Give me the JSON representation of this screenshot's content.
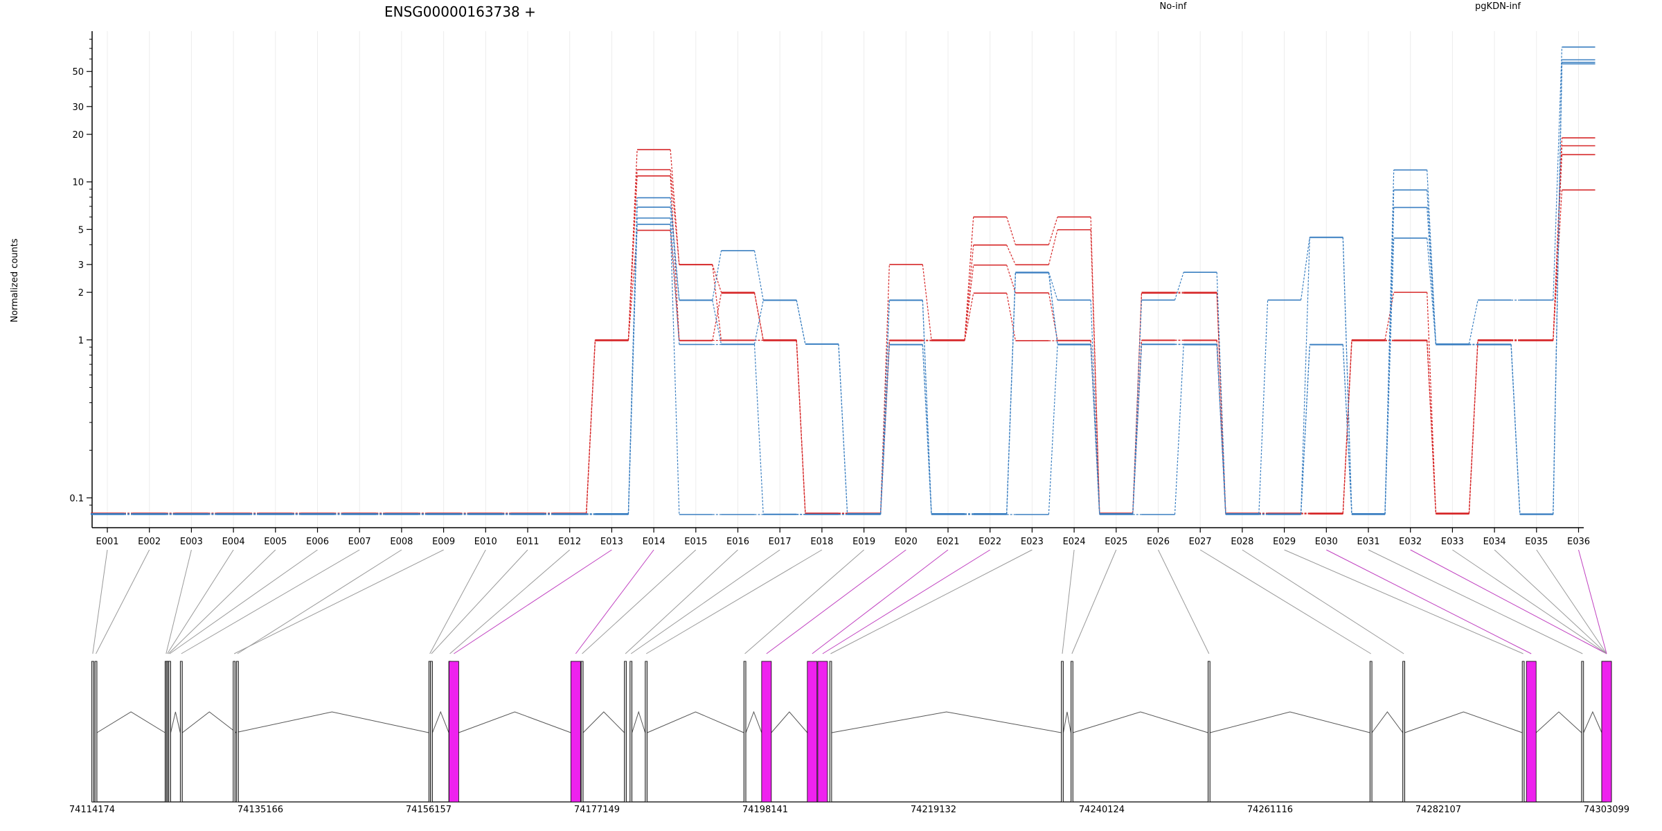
{
  "chart_data": {
    "type": "line",
    "title": "ENSG00000163738 +",
    "ylabel": "Normalized counts",
    "yscale": "log",
    "yticks": [
      0.1,
      1,
      2,
      3,
      5,
      10,
      20,
      30,
      50
    ],
    "ytick_labels": [
      "0.1",
      "1",
      "2",
      "3",
      "5",
      "10",
      "20",
      "30",
      "50"
    ],
    "ylim": [
      0.08,
      90
    ],
    "grid": true,
    "legend_position": "top",
    "exon_labels": [
      "E001",
      "E002",
      "E003",
      "E004",
      "E005",
      "E006",
      "E007",
      "E008",
      "E009",
      "E010",
      "E011",
      "E012",
      "E013",
      "E014",
      "E015",
      "E016",
      "E017",
      "E018",
      "E019",
      "E020",
      "E021",
      "E022",
      "E023",
      "E024",
      "E025",
      "E026",
      "E027",
      "E028",
      "E029",
      "E030",
      "E031",
      "E032",
      "E033",
      "E034",
      "E035",
      "E036"
    ],
    "series": [
      {
        "name": "No-inf",
        "color": "#d62728",
        "samples": [
          {
            "values": [
              0.08,
              0.08,
              0.08,
              0.08,
              0.08,
              0.08,
              0.08,
              0.08,
              0.08,
              0.08,
              0.08,
              0.08,
              1,
              16,
              3,
              2,
              1,
              0.08,
              0.08,
              3,
              1,
              6,
              4,
              6,
              0.08,
              2,
              2,
              0.08,
              0.08,
              0.08,
              1,
              2,
              0.08,
              1,
              1,
              19
            ]
          },
          {
            "values": [
              0.08,
              0.08,
              0.08,
              0.08,
              0.08,
              0.08,
              0.08,
              0.08,
              0.08,
              0.08,
              0.08,
              0.08,
              1,
              12,
              3,
              1,
              1,
              0.08,
              0.08,
              1,
              1,
              4,
              3,
              5,
              0.08,
              1,
              1,
              0.08,
              0.08,
              0.08,
              1,
              1,
              0.08,
              1,
              1,
              17
            ]
          },
          {
            "values": [
              0.08,
              0.08,
              0.08,
              0.08,
              0.08,
              0.08,
              0.08,
              0.08,
              0.08,
              0.08,
              0.08,
              0.08,
              1,
              11,
              1,
              1,
              1,
              0.08,
              0.08,
              1,
              1,
              3,
              2,
              1,
              0.08,
              1,
              1,
              0.08,
              0.08,
              0.08,
              1,
              1,
              0.08,
              1,
              1,
              15
            ]
          },
          {
            "values": [
              0.08,
              0.08,
              0.08,
              0.08,
              0.08,
              0.08,
              0.08,
              0.08,
              0.08,
              0.08,
              0.08,
              0.08,
              1,
              5,
              1,
              2,
              1,
              0.08,
              0.08,
              1,
              1,
              2,
              1,
              1,
              0.08,
              2,
              2,
              0.08,
              0.08,
              0.08,
              1,
              1,
              0.08,
              1,
              1,
              9
            ]
          }
        ]
      },
      {
        "name": "pgKDN-inf",
        "color": "#3a7fc1",
        "samples": [
          {
            "values": [
              0.08,
              0.08,
              0.08,
              0.08,
              0.08,
              0.08,
              0.08,
              0.08,
              0.08,
              0.08,
              0.08,
              0.08,
              0.08,
              8,
              1.8,
              3.7,
              1.8,
              0.95,
              0.08,
              1.8,
              0.08,
              0.08,
              2.7,
              1.8,
              0.08,
              1.8,
              2.7,
              0.08,
              1.8,
              4.5,
              0.08,
              12,
              0.95,
              1.8,
              1.8,
              72
            ]
          },
          {
            "values": [
              0.08,
              0.08,
              0.08,
              0.08,
              0.08,
              0.08,
              0.08,
              0.08,
              0.08,
              0.08,
              0.08,
              0.08,
              0.08,
              7,
              1.8,
              0.95,
              1.8,
              0.95,
              0.08,
              1.8,
              0.08,
              0.08,
              2.7,
              0.95,
              0.08,
              0.95,
              0.95,
              0.08,
              0.08,
              4.5,
              0.08,
              9,
              0.95,
              0.95,
              0.08,
              60
            ]
          },
          {
            "values": [
              0.08,
              0.08,
              0.08,
              0.08,
              0.08,
              0.08,
              0.08,
              0.08,
              0.08,
              0.08,
              0.08,
              0.08,
              0.08,
              6,
              0.95,
              0.95,
              0.08,
              0.08,
              0.08,
              0.95,
              0.08,
              0.08,
              2.7,
              0.95,
              0.08,
              0.95,
              0.95,
              0.08,
              0.08,
              0.95,
              0.08,
              7,
              0.95,
              0.95,
              0.08,
              58
            ]
          },
          {
            "values": [
              0.08,
              0.08,
              0.08,
              0.08,
              0.08,
              0.08,
              0.08,
              0.08,
              0.08,
              0.08,
              0.08,
              0.08,
              0.08,
              5.5,
              0.08,
              0.08,
              0.08,
              0.08,
              0.08,
              0.95,
              0.08,
              0.08,
              0.08,
              0.95,
              0.08,
              0.08,
              0.95,
              0.08,
              0.08,
              0.95,
              0.08,
              4.5,
              0.95,
              0.95,
              0.08,
              57
            ]
          }
        ]
      }
    ],
    "gene_model": {
      "coordinate_ticks": [
        74114174,
        74135166,
        74156157,
        74177149,
        74198141,
        74219132,
        74240124,
        74261116,
        74282107,
        74303099
      ],
      "coordinate_labels": [
        "74114174",
        "74135166",
        "74156157",
        "74177149",
        "74198141",
        "74219132",
        "74240124",
        "74261116",
        "74282107",
        "74303099"
      ],
      "range": [
        74114174,
        74303099
      ],
      "exon_positions": [
        74114250,
        74114650,
        74123400,
        74123550,
        74123700,
        74123850,
        74125300,
        74132300,
        74131900,
        74156300,
        74156500,
        74158800,
        74159300,
        74174500,
        74175300,
        74180700,
        74181400,
        74183300,
        74195600,
        74198300,
        74204000,
        74205300,
        74206300,
        74235200,
        74236400,
        74253500,
        74273700,
        74277800,
        74292700,
        74293700,
        74300100,
        74305100,
        74309200,
        74313800,
        74317800,
        74328400
      ],
      "highlighted_exons": [
        "E013",
        "E014",
        "E020",
        "E021",
        "E022",
        "E030",
        "E032",
        "E036"
      ],
      "highlight_color": "#ee22ee",
      "exon_color": "#c8c8c8"
    }
  }
}
